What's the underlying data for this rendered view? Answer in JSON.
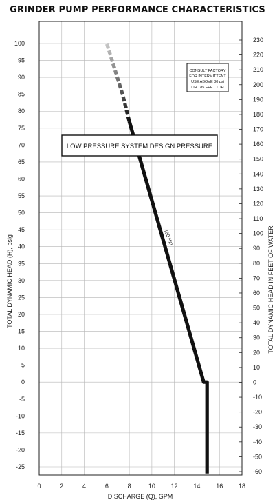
{
  "chart_data": {
    "type": "line",
    "title": "GRINDER PUMP PERFORMANCE CHARACTERISTICS",
    "xlabel": "DISCHARGE (Q), GPM",
    "ylabel_left": "TOTAL DYNAMIC HEAD (H), psig",
    "ylabel_right": "TOTAL DYNAMIC HEAD IN FEET OF WATER",
    "xlim": [
      0,
      18
    ],
    "ylim_left": [
      -25,
      100
    ],
    "ylim_right": [
      -60,
      230
    ],
    "x_ticks": [
      "0",
      "2",
      "4",
      "6",
      "8",
      "10",
      "12",
      "14",
      "16",
      "18"
    ],
    "y_left_ticks": [
      "100",
      "95",
      "90",
      "85",
      "80",
      "75",
      "70",
      "65",
      "60",
      "55",
      "50",
      "45",
      "40",
      "35",
      "30",
      "25",
      "20",
      "15",
      "10",
      "5",
      "0",
      "-5",
      "-10",
      "-15",
      "-20",
      "-25"
    ],
    "y_right_ticks": [
      "230",
      "220",
      "210",
      "200",
      "190",
      "180",
      "170",
      "160",
      "150",
      "140",
      "130",
      "120",
      "110",
      "100",
      "90",
      "80",
      "70",
      "60",
      "50",
      "40",
      "30",
      "20",
      "10",
      "0",
      "-10",
      "-20",
      "-30",
      "-40",
      "-50",
      "-60"
    ],
    "grid": true,
    "series": [
      {
        "name": "(60 Hz)",
        "solid_points": [
          [
            14.9,
            -27
          ],
          [
            14.9,
            0
          ],
          [
            14.6,
            0
          ],
          [
            8.0,
            77
          ]
        ],
        "faded_points": [
          [
            8.0,
            77
          ],
          [
            7.4,
            85
          ],
          [
            6.0,
            100
          ]
        ]
      }
    ],
    "annotations": {
      "design_pressure": {
        "label": "LOW PRESSURE SYSTEM DESIGN PRESSURE",
        "y": 70
      },
      "note_lines": [
        "CONSULT FACTORY",
        "FOR INTERMITTENT",
        "USE ABOVE 80 psi",
        "OR 185 FEET TDH"
      ]
    }
  }
}
